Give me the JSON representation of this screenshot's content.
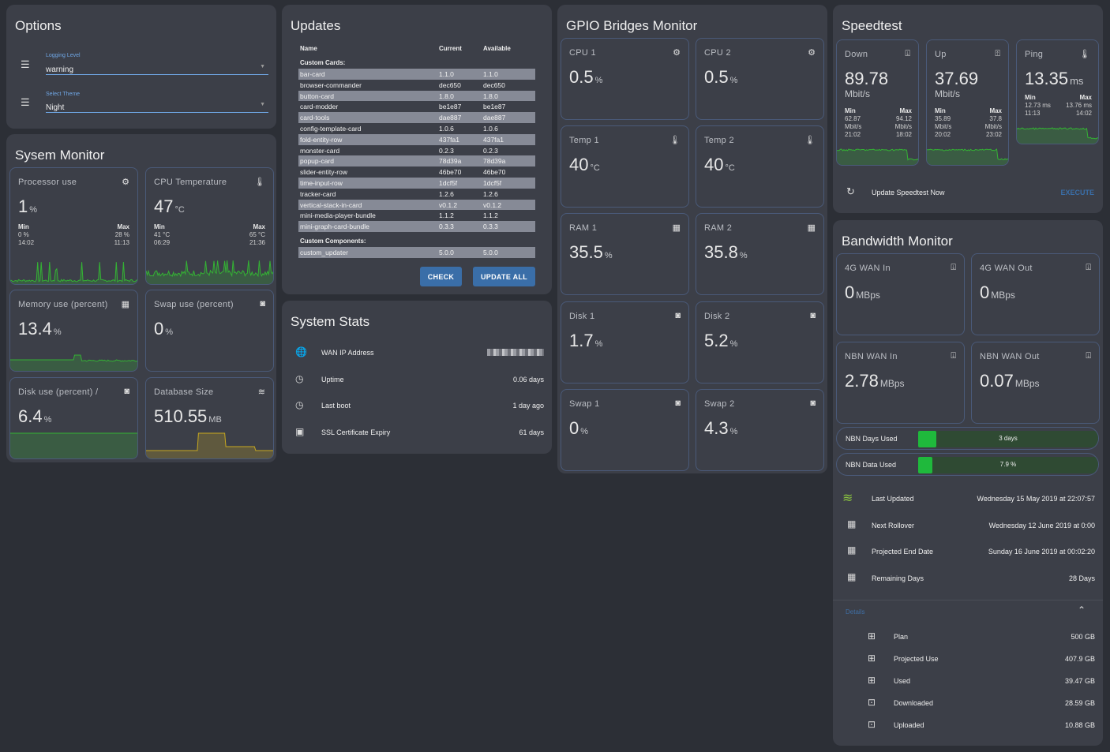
{
  "options": {
    "title": "Options",
    "logging_label": "Logging Level",
    "logging_value": "warning",
    "theme_label": "Select Theme",
    "theme_value": "Night"
  },
  "sysmon": {
    "title": "Sysem Monitor",
    "processor": {
      "label": "Processor use",
      "value": "1",
      "unit": "%",
      "min_label": "Min",
      "min_val": "0 %",
      "min_time": "14:02",
      "max_label": "Max",
      "max_val": "28 %",
      "max_time": "11:13"
    },
    "cputemp": {
      "label": "CPU Temperature",
      "value": "47",
      "unit": "°C",
      "min_label": "Min",
      "min_val": "41 °C",
      "min_time": "06:29",
      "max_label": "Max",
      "max_val": "65 °C",
      "max_time": "21:36"
    },
    "memory": {
      "label": "Memory use (percent)",
      "value": "13.4",
      "unit": "%"
    },
    "swap": {
      "label": "Swap use (percent)",
      "value": "0",
      "unit": "%"
    },
    "disk": {
      "label": "Disk use (percent) /",
      "value": "6.4",
      "unit": "%"
    },
    "db": {
      "label": "Database Size",
      "value": "510.55",
      "unit": "MB"
    }
  },
  "updates": {
    "title": "Updates",
    "col_name": "Name",
    "col_current": "Current",
    "col_available": "Available",
    "section_cards": "Custom Cards:",
    "cards": [
      [
        "bar-card",
        "1.1.0",
        "1.1.0"
      ],
      [
        "browser-commander",
        "dec650",
        "dec650"
      ],
      [
        "button-card",
        "1.8.0",
        "1.8.0"
      ],
      [
        "card-modder",
        "be1e87",
        "be1e87"
      ],
      [
        "card-tools",
        "dae887",
        "dae887"
      ],
      [
        "config-template-card",
        "1.0.6",
        "1.0.6"
      ],
      [
        "fold-entity-row",
        "437fa1",
        "437fa1"
      ],
      [
        "monster-card",
        "0.2.3",
        "0.2.3"
      ],
      [
        "popup-card",
        "78d39a",
        "78d39a"
      ],
      [
        "slider-entity-row",
        "46be70",
        "46be70"
      ],
      [
        "time-input-row",
        "1dcf5f",
        "1dcf5f"
      ],
      [
        "tracker-card",
        "1.2.6",
        "1.2.6"
      ],
      [
        "vertical-stack-in-card",
        "v0.1.2",
        "v0.1.2"
      ],
      [
        "mini-media-player-bundle",
        "1.1.2",
        "1.1.2"
      ],
      [
        "mini-graph-card-bundle",
        "0.3.3",
        "0.3.3"
      ]
    ],
    "section_components": "Custom Components:",
    "components": [
      [
        "custom_updater",
        "5.0.0",
        "5.0.0"
      ]
    ],
    "check_label": "CHECK",
    "update_all_label": "UPDATE ALL"
  },
  "stats": {
    "title": "System Stats",
    "rows": [
      {
        "icon": "globe-icon",
        "label": "WAN IP Address",
        "value": ""
      },
      {
        "icon": "clock-icon",
        "label": "Uptime",
        "value": "0.06 days"
      },
      {
        "icon": "clock-icon",
        "label": "Last boot",
        "value": "1 day ago"
      },
      {
        "icon": "certificate-icon",
        "label": "SSL Certificate Expiry",
        "value": "61 days"
      }
    ]
  },
  "gpio": {
    "title": "GPIO Bridges Monitor",
    "tiles": [
      {
        "label": "CPU 1",
        "value": "0.5",
        "unit": "%",
        "icon": "chip-icon"
      },
      {
        "label": "CPU 2",
        "value": "0.5",
        "unit": "%",
        "icon": "chip-icon"
      },
      {
        "label": "Temp 1",
        "value": "40",
        "unit": "°C",
        "icon": "thermometer-icon"
      },
      {
        "label": "Temp 2",
        "value": "40",
        "unit": "°C",
        "icon": "thermometer-icon"
      },
      {
        "label": "RAM 1",
        "value": "35.5",
        "unit": "%",
        "icon": "memory-icon"
      },
      {
        "label": "RAM 2",
        "value": "35.8",
        "unit": "%",
        "icon": "memory-icon"
      },
      {
        "label": "Disk 1",
        "value": "1.7",
        "unit": "%",
        "icon": "harddisk-icon"
      },
      {
        "label": "Disk 2",
        "value": "5.2",
        "unit": "%",
        "icon": "harddisk-icon"
      },
      {
        "label": "Swap 1",
        "value": "0",
        "unit": "%",
        "icon": "harddisk-icon"
      },
      {
        "label": "Swap 2",
        "value": "4.3",
        "unit": "%",
        "icon": "harddisk-icon"
      }
    ]
  },
  "speedtest": {
    "title": "Speedtest",
    "down": {
      "label": "Down",
      "value": "89.78",
      "unit": "Mbit/s",
      "min_label": "Min",
      "min_val": "62.87",
      "min_unit": "Mbit/s",
      "min_time": "21:02",
      "max_label": "Max",
      "max_val": "94.12",
      "max_unit": "Mbit/s",
      "max_time": "18:02"
    },
    "up": {
      "label": "Up",
      "value": "37.69",
      "unit": "Mbit/s",
      "min_label": "Min",
      "min_val": "35.89",
      "min_unit": "Mbit/s",
      "min_time": "20:02",
      "max_label": "Max",
      "max_val": "37.8",
      "max_unit": "Mbit/s",
      "max_time": "23:02"
    },
    "ping": {
      "label": "Ping",
      "value": "13.35",
      "unit": "ms",
      "min_label": "Min",
      "min_val": "12.73 ms",
      "min_time": "11:13",
      "max_label": "Max",
      "max_val": "13.76 ms",
      "max_time": "14:02"
    },
    "update_label": "Update Speedtest Now",
    "execute_label": "EXECUTE"
  },
  "bandwidth": {
    "title": "Bandwidth Monitor",
    "tiles": [
      {
        "label": "4G WAN In",
        "value": "0",
        "unit": "MBps"
      },
      {
        "label": "4G WAN Out",
        "value": "0",
        "unit": "MBps"
      },
      {
        "label": "NBN WAN In",
        "value": "2.78",
        "unit": "MBps"
      },
      {
        "label": "NBN WAN Out",
        "value": "0.07",
        "unit": "MBps"
      }
    ],
    "days_used_label": "NBN Days Used",
    "days_used_value": "3 days",
    "days_used_fraction": 0.1,
    "data_used_label": "NBN Data Used",
    "data_used_value": "7.9 %",
    "data_used_fraction": 0.079,
    "info": [
      {
        "icon": "nbn-logo-icon",
        "label": "Last Updated",
        "value": "Wednesday 15 May 2019 at 22:07:57"
      },
      {
        "icon": "calendar-icon",
        "label": "Next Rollover",
        "value": "Wednesday 12 June 2019 at 0:00"
      },
      {
        "icon": "calendar-icon",
        "label": "Projected End Date",
        "value": "Sunday 16 June 2019 at 00:02:20"
      },
      {
        "icon": "calendar-icon",
        "label": "Remaining Days",
        "value": "28 Days"
      }
    ],
    "details_label": "Details",
    "details": [
      {
        "icon": "network-icon",
        "label": "Plan",
        "value": "500 GB"
      },
      {
        "icon": "network-icon",
        "label": "Projected Use",
        "value": "407.9 GB"
      },
      {
        "icon": "network-icon",
        "label": "Used",
        "value": "39.47 GB"
      },
      {
        "icon": "download-network-icon",
        "label": "Downloaded",
        "value": "28.59 GB"
      },
      {
        "icon": "upload-network-icon",
        "label": "Uploaded",
        "value": "10.88 GB"
      }
    ]
  },
  "colors": {
    "green": "#34b234",
    "blue": "#3a8ed8",
    "yellow": "#c8a91f",
    "bar_green": "#1fb93c"
  }
}
